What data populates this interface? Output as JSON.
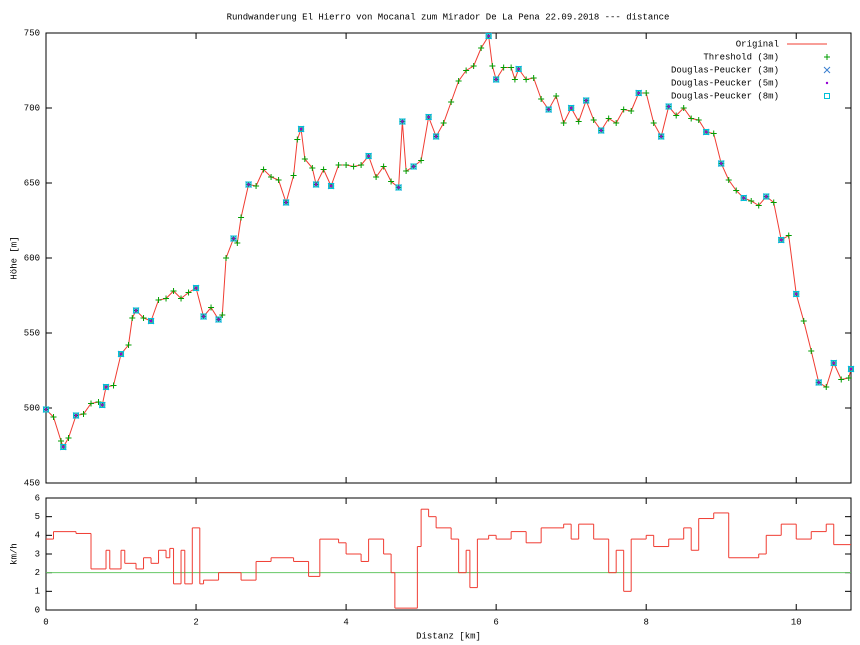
{
  "chart_data": [
    {
      "type": "line",
      "title": "Rundwanderung El Hierro von Mocanal zum Mirador De La Pena 22.09.2018 --- distance",
      "ylabel": "Höhe [m]",
      "xlim": [
        0,
        10.73
      ],
      "ylim": [
        450,
        750
      ],
      "yticks": [
        450,
        500,
        550,
        600,
        650,
        700,
        750
      ],
      "xticks": [
        0,
        2,
        4,
        6,
        8,
        10
      ],
      "xtick_labels": false,
      "legend": "top-right",
      "series": [
        {
          "name": "Original",
          "color": "#f03c32",
          "marker": "line",
          "x": [
            0,
            0.1,
            0.2,
            0.23,
            0.3,
            0.4,
            0.5,
            0.6,
            0.7,
            0.75,
            0.8,
            0.9,
            1.0,
            1.1,
            1.15,
            1.2,
            1.3,
            1.4,
            1.5,
            1.6,
            1.7,
            1.8,
            1.9,
            2.0,
            2.1,
            2.2,
            2.3,
            2.35,
            2.4,
            2.5,
            2.55,
            2.6,
            2.7,
            2.8,
            2.9,
            3.0,
            3.1,
            3.2,
            3.3,
            3.35,
            3.4,
            3.45,
            3.55,
            3.6,
            3.7,
            3.8,
            3.9,
            4.0,
            4.1,
            4.2,
            4.3,
            4.4,
            4.5,
            4.6,
            4.7,
            4.75,
            4.8,
            4.9,
            5.0,
            5.1,
            5.2,
            5.3,
            5.4,
            5.5,
            5.6,
            5.7,
            5.8,
            5.9,
            5.95,
            6.0,
            6.1,
            6.2,
            6.25,
            6.3,
            6.4,
            6.5,
            6.6,
            6.7,
            6.8,
            6.9,
            7.0,
            7.1,
            7.2,
            7.3,
            7.4,
            7.5,
            7.6,
            7.7,
            7.8,
            7.9,
            8.0,
            8.1,
            8.2,
            8.3,
            8.4,
            8.5,
            8.6,
            8.7,
            8.8,
            8.9,
            9.0,
            9.1,
            9.2,
            9.3,
            9.4,
            9.5,
            9.6,
            9.7,
            9.8,
            9.9,
            10.0,
            10.1,
            10.2,
            10.3,
            10.4,
            10.5,
            10.6,
            10.7,
            10.73
          ],
          "values": [
            499,
            494,
            478,
            474,
            480,
            495,
            496,
            503,
            504,
            502,
            514,
            515,
            536,
            542,
            560,
            565,
            560,
            558,
            572,
            573,
            578,
            573,
            577,
            580,
            561,
            567,
            559,
            562,
            600,
            613,
            610,
            627,
            649,
            648,
            659,
            654,
            652,
            637,
            655,
            679,
            686,
            666,
            660,
            649,
            659,
            648,
            662,
            662,
            661,
            662,
            668,
            654,
            661,
            651,
            647,
            691,
            658,
            661,
            665,
            694,
            681,
            690,
            704,
            718,
            725,
            728,
            740,
            748,
            728,
            719,
            727,
            727,
            719,
            726,
            719,
            720,
            706,
            699,
            708,
            690,
            700,
            691,
            705,
            692,
            685,
            693,
            690,
            699,
            698,
            710,
            710,
            690,
            681,
            701,
            695,
            700,
            693,
            692,
            684,
            683,
            663,
            652,
            645,
            640,
            638,
            635,
            641,
            637,
            612,
            615,
            576,
            558,
            538,
            517,
            514,
            530,
            519,
            520,
            526
          ]
        },
        {
          "name": "Threshold (3m)",
          "color": "#009e00",
          "marker": "plus",
          "x": [
            0,
            0.1,
            0.2,
            0.23,
            0.3,
            0.4,
            0.5,
            0.6,
            0.7,
            0.75,
            0.8,
            0.9,
            1.0,
            1.1,
            1.15,
            1.2,
            1.3,
            1.4,
            1.5,
            1.6,
            1.7,
            1.8,
            1.9,
            2.0,
            2.1,
            2.2,
            2.3,
            2.35,
            2.4,
            2.5,
            2.55,
            2.6,
            2.7,
            2.8,
            2.9,
            3.0,
            3.1,
            3.2,
            3.3,
            3.35,
            3.4,
            3.45,
            3.55,
            3.6,
            3.7,
            3.8,
            3.9,
            4.0,
            4.1,
            4.2,
            4.3,
            4.4,
            4.5,
            4.6,
            4.7,
            4.75,
            4.8,
            4.9,
            5.0,
            5.1,
            5.2,
            5.3,
            5.4,
            5.5,
            5.6,
            5.7,
            5.8,
            5.9,
            5.95,
            6.0,
            6.1,
            6.2,
            6.25,
            6.3,
            6.4,
            6.5,
            6.6,
            6.7,
            6.8,
            6.9,
            7.0,
            7.1,
            7.2,
            7.3,
            7.4,
            7.5,
            7.6,
            7.7,
            7.8,
            7.9,
            8.0,
            8.1,
            8.2,
            8.3,
            8.4,
            8.5,
            8.6,
            8.7,
            8.8,
            8.9,
            9.0,
            9.1,
            9.2,
            9.3,
            9.4,
            9.5,
            9.6,
            9.7,
            9.8,
            9.9,
            10.0,
            10.1,
            10.2,
            10.3,
            10.4,
            10.5,
            10.6,
            10.7,
            10.73
          ],
          "values": [
            499,
            494,
            478,
            474,
            480,
            495,
            496,
            503,
            504,
            502,
            514,
            515,
            536,
            542,
            560,
            565,
            560,
            558,
            572,
            573,
            578,
            573,
            577,
            580,
            561,
            567,
            559,
            562,
            600,
            613,
            610,
            627,
            649,
            648,
            659,
            654,
            652,
            637,
            655,
            679,
            686,
            666,
            660,
            649,
            659,
            648,
            662,
            662,
            661,
            662,
            668,
            654,
            661,
            651,
            647,
            691,
            658,
            661,
            665,
            694,
            681,
            690,
            704,
            718,
            725,
            728,
            740,
            748,
            728,
            719,
            727,
            727,
            719,
            726,
            719,
            720,
            706,
            699,
            708,
            690,
            700,
            691,
            705,
            692,
            685,
            693,
            690,
            699,
            698,
            710,
            710,
            690,
            681,
            701,
            695,
            700,
            693,
            692,
            684,
            683,
            663,
            652,
            645,
            640,
            638,
            635,
            641,
            637,
            612,
            615,
            576,
            558,
            538,
            517,
            514,
            530,
            519,
            520,
            526
          ]
        },
        {
          "name": "Douglas-Peucker (3m)",
          "color": "#3a7fd0",
          "marker": "cross",
          "x": [
            0,
            0.23,
            0.4,
            0.75,
            0.8,
            1.0,
            1.2,
            1.4,
            2.0,
            2.1,
            2.3,
            2.5,
            2.7,
            3.2,
            3.4,
            3.6,
            3.8,
            4.3,
            4.7,
            4.75,
            4.9,
            5.1,
            5.2,
            5.9,
            6.0,
            6.3,
            6.7,
            7.0,
            7.2,
            7.4,
            7.9,
            8.2,
            8.3,
            8.8,
            9.0,
            9.3,
            9.6,
            9.8,
            10.0,
            10.3,
            10.5,
            10.73
          ],
          "values": [
            499,
            474,
            495,
            502,
            514,
            536,
            565,
            558,
            580,
            561,
            559,
            613,
            649,
            637,
            686,
            649,
            648,
            668,
            647,
            691,
            661,
            694,
            681,
            748,
            719,
            726,
            699,
            700,
            705,
            685,
            710,
            681,
            701,
            684,
            663,
            640,
            641,
            612,
            576,
            517,
            530,
            526
          ]
        },
        {
          "name": "Douglas-Peucker (5m)",
          "color": "#9400d3",
          "marker": "dot",
          "x": [
            0,
            0.23,
            0.4,
            0.75,
            0.8,
            1.0,
            1.2,
            1.4,
            2.0,
            2.1,
            2.3,
            2.5,
            2.7,
            3.2,
            3.4,
            3.6,
            3.8,
            4.3,
            4.7,
            4.75,
            4.9,
            5.1,
            5.2,
            5.9,
            6.0,
            6.3,
            6.7,
            7.0,
            7.2,
            7.4,
            7.9,
            8.2,
            8.3,
            8.8,
            9.0,
            9.3,
            9.6,
            9.8,
            10.0,
            10.3,
            10.5,
            10.73
          ],
          "values": [
            499,
            474,
            495,
            502,
            514,
            536,
            565,
            558,
            580,
            561,
            559,
            613,
            649,
            637,
            686,
            649,
            648,
            668,
            647,
            691,
            661,
            694,
            681,
            748,
            719,
            726,
            699,
            700,
            705,
            685,
            710,
            681,
            701,
            684,
            663,
            640,
            641,
            612,
            576,
            517,
            530,
            526
          ]
        },
        {
          "name": "Douglas-Peucker (8m)",
          "color": "#00c0d8",
          "marker": "square",
          "x": [
            0,
            0.23,
            0.4,
            0.75,
            0.8,
            1.0,
            1.2,
            1.4,
            2.0,
            2.1,
            2.3,
            2.5,
            2.7,
            3.2,
            3.4,
            3.6,
            3.8,
            4.3,
            4.7,
            4.75,
            4.9,
            5.1,
            5.2,
            5.9,
            6.0,
            6.3,
            6.7,
            7.0,
            7.2,
            7.4,
            7.9,
            8.2,
            8.3,
            8.8,
            9.0,
            9.3,
            9.6,
            9.8,
            10.0,
            10.3,
            10.5,
            10.73
          ],
          "values": [
            499,
            474,
            495,
            502,
            514,
            536,
            565,
            558,
            580,
            561,
            559,
            613,
            649,
            637,
            686,
            649,
            648,
            668,
            647,
            691,
            661,
            694,
            681,
            748,
            719,
            726,
            699,
            700,
            705,
            685,
            710,
            681,
            701,
            684,
            663,
            640,
            641,
            612,
            576,
            517,
            530,
            526
          ]
        }
      ]
    },
    {
      "type": "line",
      "step": true,
      "xlabel": "Distanz [km]",
      "ylabel": "km/h",
      "xlim": [
        0,
        10.73
      ],
      "ylim": [
        0,
        6
      ],
      "yticks": [
        0,
        1,
        2,
        3,
        4,
        5,
        6
      ],
      "xticks": [
        0,
        2,
        4,
        6,
        8,
        10
      ],
      "xtick_labels": true,
      "reference_y": 2,
      "reference_color": "#66c866",
      "series": [
        {
          "color": "#f03c32",
          "x": [
            0,
            0.1,
            0.4,
            0.6,
            0.8,
            0.85,
            1.0,
            1.05,
            1.2,
            1.3,
            1.4,
            1.5,
            1.6,
            1.65,
            1.7,
            1.8,
            1.85,
            1.95,
            2.05,
            2.1,
            2.3,
            2.6,
            2.8,
            3.0,
            3.3,
            3.5,
            3.65,
            3.9,
            4.0,
            4.2,
            4.3,
            4.5,
            4.6,
            4.65,
            4.95,
            5.0,
            5.1,
            5.2,
            5.4,
            5.5,
            5.6,
            5.65,
            5.75,
            5.9,
            6.0,
            6.2,
            6.4,
            6.6,
            6.9,
            7.0,
            7.1,
            7.3,
            7.5,
            7.6,
            7.7,
            7.8,
            8.0,
            8.1,
            8.3,
            8.5,
            8.6,
            8.7,
            8.9,
            9.1,
            9.5,
            9.6,
            9.8,
            10.0,
            10.2,
            10.4,
            10.5,
            10.73
          ],
          "values": [
            3.8,
            4.2,
            4.1,
            2.2,
            3.2,
            2.2,
            3.2,
            2.5,
            2.2,
            2.8,
            2.5,
            3.2,
            2.8,
            3.3,
            1.4,
            3.2,
            1.4,
            4.4,
            1.4,
            1.6,
            2.0,
            1.6,
            2.6,
            2.8,
            2.6,
            1.8,
            3.8,
            3.6,
            3.0,
            2.6,
            3.8,
            3.0,
            2.0,
            0.1,
            3.4,
            5.4,
            5.0,
            4.4,
            3.8,
            2.0,
            3.2,
            1.2,
            3.8,
            4.0,
            3.8,
            4.2,
            3.6,
            4.4,
            4.6,
            3.8,
            4.6,
            3.8,
            2.0,
            3.2,
            1.0,
            3.8,
            4.0,
            3.4,
            3.8,
            4.4,
            3.2,
            4.9,
            5.2,
            2.8,
            3.0,
            4.0,
            4.6,
            3.8,
            4.2,
            4.6,
            3.5,
            3.5
          ]
        }
      ]
    }
  ]
}
